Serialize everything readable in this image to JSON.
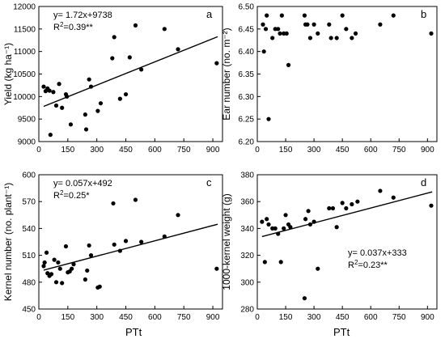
{
  "chart_data": [
    {
      "type": "scatter",
      "panel_letter": "a",
      "xlim": [
        0,
        950
      ],
      "ylim": [
        9000,
        12000
      ],
      "xticks": [
        "0",
        "150",
        "300",
        "450",
        "600",
        "750",
        "900"
      ],
      "yticks": [
        "9000",
        "9500",
        "10000",
        "10500",
        "11000",
        "11500",
        "12000"
      ],
      "ylabel": "Yield (kg ha⁻¹)",
      "xlabel": "",
      "equation": "y= 1.72x+9738",
      "r2_prefix": "R",
      "r2_sup": "2",
      "r2_value": "=0.39**",
      "fit": {
        "slope": 1.72,
        "intercept": 9738
      },
      "points": [
        [
          25,
          10220
        ],
        [
          35,
          10120
        ],
        [
          45,
          10180
        ],
        [
          55,
          10130
        ],
        [
          60,
          9150
        ],
        [
          75,
          10100
        ],
        [
          90,
          9800
        ],
        [
          105,
          10280
        ],
        [
          120,
          9750
        ],
        [
          140,
          10050
        ],
        [
          145,
          10000
        ],
        [
          165,
          9380
        ],
        [
          240,
          9600
        ],
        [
          245,
          9270
        ],
        [
          260,
          10380
        ],
        [
          270,
          10220
        ],
        [
          305,
          9680
        ],
        [
          320,
          9850
        ],
        [
          380,
          10850
        ],
        [
          390,
          11320
        ],
        [
          420,
          9950
        ],
        [
          450,
          10050
        ],
        [
          470,
          10870
        ],
        [
          500,
          11580
        ],
        [
          530,
          10600
        ],
        [
          650,
          11500
        ],
        [
          720,
          11050
        ],
        [
          920,
          10740
        ]
      ]
    },
    {
      "type": "scatter",
      "panel_letter": "b",
      "xlim": [
        0,
        950
      ],
      "ylim": [
        6.2,
        6.5
      ],
      "xticks": [
        "0",
        "150",
        "300",
        "450",
        "600",
        "750",
        "900"
      ],
      "yticks": [
        "6.20",
        "6.25",
        "6.30",
        "6.35",
        "6.40",
        "6.45",
        "6.50"
      ],
      "ylabel": "Ear number (no. m⁻²)",
      "xlabel": "",
      "points": [
        [
          30,
          6.46
        ],
        [
          35,
          6.4
        ],
        [
          45,
          6.45
        ],
        [
          50,
          6.48
        ],
        [
          60,
          6.25
        ],
        [
          80,
          6.43
        ],
        [
          95,
          6.45
        ],
        [
          110,
          6.45
        ],
        [
          120,
          6.44
        ],
        [
          130,
          6.48
        ],
        [
          140,
          6.44
        ],
        [
          155,
          6.44
        ],
        [
          165,
          6.37
        ],
        [
          250,
          6.48
        ],
        [
          255,
          6.46
        ],
        [
          265,
          6.46
        ],
        [
          280,
          6.43
        ],
        [
          300,
          6.46
        ],
        [
          320,
          6.44
        ],
        [
          380,
          6.46
        ],
        [
          390,
          6.43
        ],
        [
          420,
          6.43
        ],
        [
          450,
          6.48
        ],
        [
          470,
          6.45
        ],
        [
          500,
          6.43
        ],
        [
          520,
          6.44
        ],
        [
          650,
          6.46
        ],
        [
          720,
          6.48
        ],
        [
          920,
          6.44
        ]
      ]
    },
    {
      "type": "scatter",
      "panel_letter": "c",
      "xlim": [
        0,
        950
      ],
      "ylim": [
        450,
        600
      ],
      "xticks": [
        "0",
        "150",
        "300",
        "450",
        "600",
        "750",
        "900"
      ],
      "yticks": [
        "450",
        "480",
        "510",
        "540",
        "570",
        "600"
      ],
      "ylabel": "Kernel number (no. plant⁻¹)",
      "xlabel": "PTt",
      "equation": "y= 0.057x+492",
      "r2_prefix": "R",
      "r2_sup": "2",
      "r2_value": "=0.25*",
      "fit": {
        "slope": 0.057,
        "intercept": 492
      },
      "points": [
        [
          25,
          498
        ],
        [
          30,
          502
        ],
        [
          40,
          513
        ],
        [
          45,
          490
        ],
        [
          55,
          487
        ],
        [
          65,
          489
        ],
        [
          80,
          505
        ],
        [
          90,
          480
        ],
        [
          100,
          502
        ],
        [
          110,
          495
        ],
        [
          120,
          479
        ],
        [
          140,
          520
        ],
        [
          150,
          491
        ],
        [
          160,
          492
        ],
        [
          170,
          495
        ],
        [
          180,
          500
        ],
        [
          240,
          483
        ],
        [
          250,
          493
        ],
        [
          260,
          521
        ],
        [
          270,
          510
        ],
        [
          305,
          474
        ],
        [
          315,
          475
        ],
        [
          385,
          568
        ],
        [
          390,
          522
        ],
        [
          420,
          515
        ],
        [
          450,
          526
        ],
        [
          500,
          572
        ],
        [
          530,
          525
        ],
        [
          650,
          531
        ],
        [
          720,
          555
        ],
        [
          920,
          495
        ]
      ]
    },
    {
      "type": "scatter",
      "panel_letter": "d",
      "xlim": [
        0,
        950
      ],
      "ylim": [
        280,
        380
      ],
      "xticks": [
        "0",
        "150",
        "300",
        "450",
        "600",
        "750",
        "900"
      ],
      "yticks": [
        "280",
        "300",
        "320",
        "340",
        "360",
        "380"
      ],
      "ylabel": "1000-kernel weight (g)",
      "xlabel": "PTt",
      "equation": "y= 0.037x+333",
      "r2_prefix": "R",
      "r2_sup": "2",
      "r2_value": "=0.23**",
      "fit": {
        "slope": 0.037,
        "intercept": 333
      },
      "points": [
        [
          25,
          345
        ],
        [
          40,
          315
        ],
        [
          50,
          347
        ],
        [
          60,
          343
        ],
        [
          80,
          340
        ],
        [
          95,
          340
        ],
        [
          110,
          336
        ],
        [
          125,
          315
        ],
        [
          140,
          340
        ],
        [
          150,
          350
        ],
        [
          165,
          343
        ],
        [
          175,
          341
        ],
        [
          250,
          288
        ],
        [
          255,
          347
        ],
        [
          270,
          353
        ],
        [
          280,
          343
        ],
        [
          300,
          345
        ],
        [
          320,
          310
        ],
        [
          380,
          355
        ],
        [
          400,
          355
        ],
        [
          420,
          341
        ],
        [
          450,
          359
        ],
        [
          470,
          355
        ],
        [
          500,
          358
        ],
        [
          530,
          360
        ],
        [
          650,
          368
        ],
        [
          720,
          363
        ],
        [
          920,
          357
        ]
      ]
    }
  ]
}
